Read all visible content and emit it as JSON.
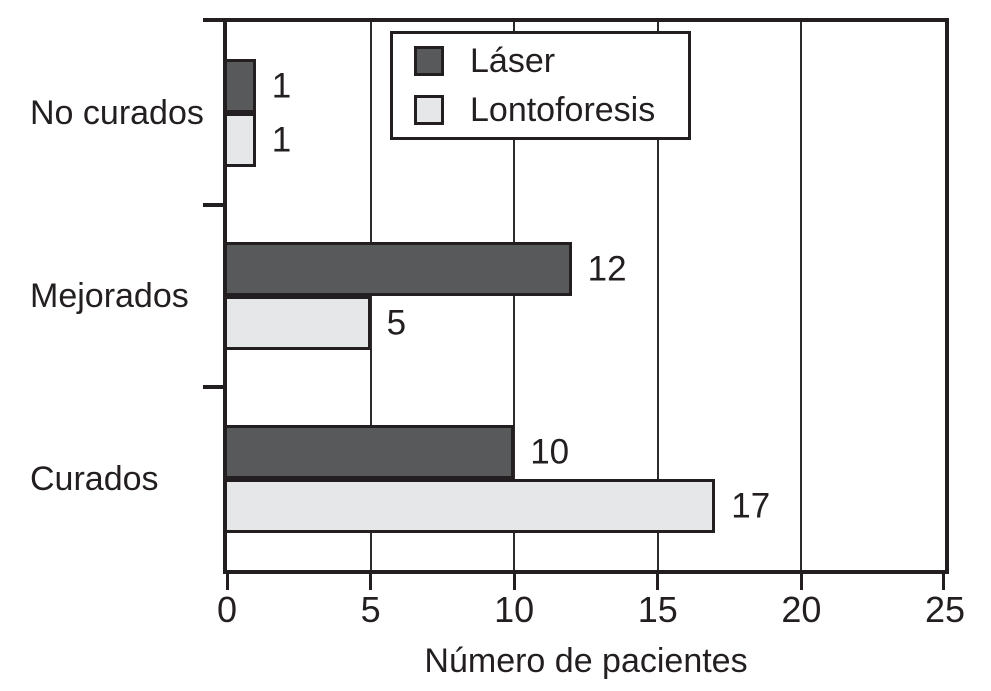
{
  "chart_data": {
    "type": "bar",
    "orientation": "horizontal",
    "title": "",
    "xlabel": "Número de pacientes",
    "ylabel": "",
    "categories": [
      "No curados",
      "Mejorados",
      "Curados"
    ],
    "series": [
      {
        "name": "Láser",
        "color": "#58595b",
        "values": [
          1,
          12,
          10
        ]
      },
      {
        "name": "Lontoforesis",
        "color": "#e6e7e8",
        "values": [
          1,
          5,
          17
        ]
      }
    ],
    "bar_value_labels": true,
    "xlim": [
      0,
      25
    ],
    "x_ticks": [
      0,
      5,
      10,
      15,
      20,
      25
    ],
    "grid": true,
    "legend_position": "top-right"
  },
  "colors": {
    "axis": "#231f20",
    "text": "#231f20",
    "gridline": "#2b2b2d",
    "background": "#ffffff",
    "laser_bar": "#58595b",
    "lontoforesis_bar": "#e6e7e8"
  }
}
